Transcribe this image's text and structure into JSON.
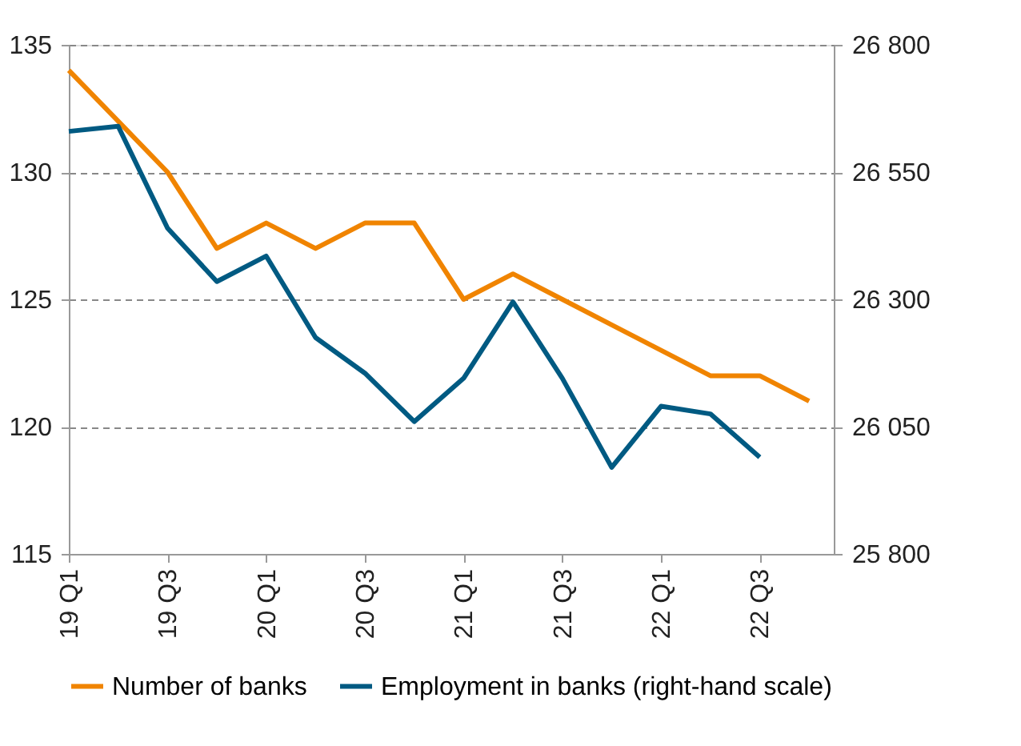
{
  "chart_data": {
    "type": "line",
    "categories": [
      "19 Q1",
      null,
      "19 Q3",
      null,
      "20 Q1",
      null,
      "20 Q3",
      null,
      "21 Q1",
      null,
      "21 Q3",
      null,
      "22 Q1",
      null,
      "22 Q3",
      null
    ],
    "series": [
      {
        "name": "Number of banks",
        "color": "#f08400",
        "values": [
          134,
          132,
          130,
          127,
          128,
          127,
          128,
          128,
          125,
          126,
          125,
          124,
          123,
          122,
          122,
          121
        ]
      },
      {
        "name": "Employment in banks (right-hand scale)",
        "color": "#005a82",
        "axis": "y2",
        "values": [
          26630,
          26640,
          26440,
          26335,
          26385,
          26225,
          26155,
          26060,
          26145,
          26295,
          26145,
          25970,
          26090,
          26075,
          25990,
          null
        ]
      }
    ],
    "ylim": [
      115,
      135
    ],
    "yticks": [
      115,
      120,
      125,
      130,
      135
    ],
    "y2lim": [
      25800,
      26800
    ],
    "y2ticks": [
      {
        "value": 25800,
        "label": "25 800"
      },
      {
        "value": 26050,
        "label": "26 050"
      },
      {
        "value": 26300,
        "label": "26 300"
      },
      {
        "value": 26550,
        "label": "26 550"
      },
      {
        "value": 26800,
        "label": "26 800"
      }
    ],
    "grid": "y",
    "legend": "bottom",
    "marker": "none",
    "line_style": "solid"
  }
}
